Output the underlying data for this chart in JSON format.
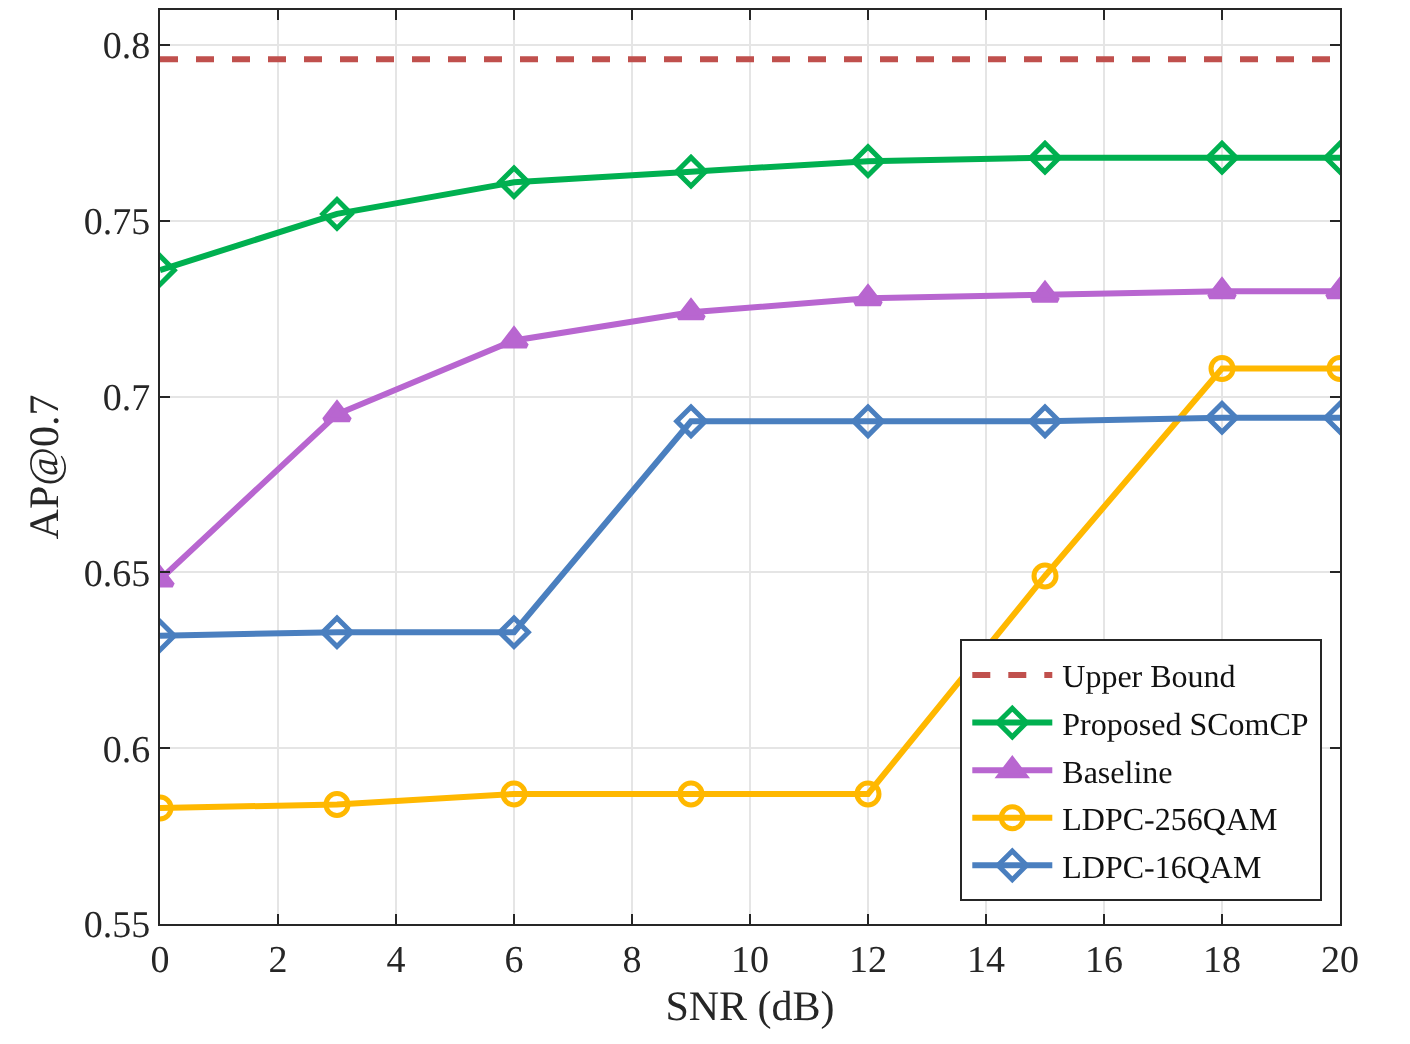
{
  "chart_data": {
    "type": "line",
    "xlabel": "SNR (dB)",
    "ylabel": "AP@0.7",
    "x": [
      0,
      3,
      6,
      9,
      12,
      15,
      18,
      20
    ],
    "xlim": [
      0,
      20
    ],
    "xticks": [
      0,
      2,
      4,
      6,
      8,
      10,
      12,
      14,
      16,
      18,
      20
    ],
    "ylim": [
      0.55,
      0.81
    ],
    "yticks": [
      0.55,
      {
        "value": 0.6,
        "label": "0.6"
      },
      0.65,
      {
        "value": 0.7,
        "label": "0.7"
      },
      0.75,
      {
        "value": 0.8,
        "label": "0.8"
      }
    ],
    "grid": true,
    "legend": "bottom right",
    "series": [
      {
        "name": "Upper Bound",
        "color": "#c0504d",
        "values": [
          0.796,
          0.796,
          0.796,
          0.796,
          0.796,
          0.796,
          0.796,
          0.796
        ],
        "line_style": "dashed",
        "marker": "none"
      },
      {
        "name": "Proposed SComCP",
        "color": "#00b050",
        "values": [
          0.736,
          0.752,
          0.761,
          0.764,
          0.767,
          0.768,
          0.768,
          0.768
        ],
        "marker": "diamond"
      },
      {
        "name": "Baseline",
        "color": "#b866d0",
        "values": [
          0.648,
          0.695,
          0.716,
          0.724,
          0.728,
          0.729,
          0.73,
          0.73
        ],
        "marker": "triangle"
      },
      {
        "name": "LDPC-256QAM",
        "color": "#ffb800",
        "values": [
          0.583,
          0.584,
          0.587,
          0.587,
          0.587,
          0.649,
          0.708,
          0.708
        ],
        "marker": "circle"
      },
      {
        "name": "LDPC-16QAM",
        "color": "#4a7fbf",
        "values": [
          0.632,
          0.633,
          0.633,
          0.693,
          0.693,
          0.693,
          0.694,
          0.694
        ],
        "marker": "diamond"
      }
    ]
  }
}
